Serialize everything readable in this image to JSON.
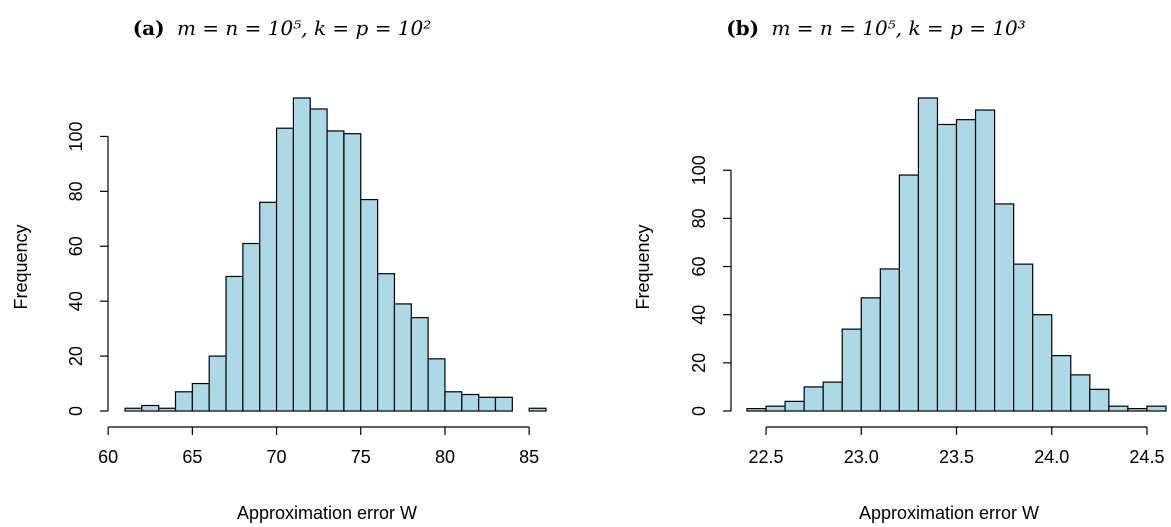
{
  "colors": {
    "bar_fill": "#add8e6",
    "bar_stroke": "#000000"
  },
  "chart_data": [
    {
      "type": "bar",
      "title": "(a) m = n = 10^5, k = p = 10^2",
      "title_prefix": "(a)",
      "title_math": "m = n = 10⁵, k = p = 10²",
      "xlabel": "Approximation error W",
      "ylabel": "Frequency",
      "bin_start": 61,
      "bin_width": 1,
      "values": [
        1,
        2,
        1,
        7,
        10,
        20,
        49,
        61,
        76,
        103,
        114,
        110,
        102,
        101,
        77,
        50,
        39,
        34,
        19,
        7,
        6,
        5,
        5,
        0,
        1
      ],
      "xlim": [
        61,
        86
      ],
      "ylim": [
        0,
        114
      ],
      "xticks": [
        60,
        65,
        70,
        75,
        80,
        85
      ],
      "yticks": [
        0,
        20,
        40,
        60,
        80,
        100
      ]
    },
    {
      "type": "bar",
      "title": "(b) m = n = 10^5, k = p = 10^3",
      "title_prefix": "(b)",
      "title_math": "m = n = 10⁵, k = p = 10³",
      "xlabel": "Approximation error W",
      "ylabel": "Frequency",
      "bin_start": 22.4,
      "bin_width": 0.1,
      "values": [
        1,
        2,
        4,
        10,
        12,
        34,
        47,
        59,
        98,
        130,
        119,
        121,
        125,
        86,
        61,
        40,
        23,
        15,
        9,
        2,
        1,
        2
      ],
      "xlim": [
        22.4,
        24.6
      ],
      "ylim": [
        0,
        130
      ],
      "xticks": [
        22.5,
        23.0,
        23.5,
        24.0,
        24.5
      ],
      "yticks": [
        0,
        20,
        40,
        60,
        80,
        100
      ]
    }
  ]
}
